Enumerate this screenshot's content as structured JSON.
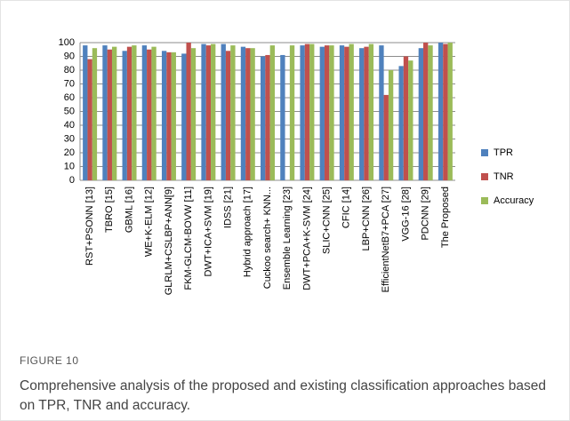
{
  "chart_data": {
    "type": "bar",
    "categories": [
      "RST+PSONN [13]",
      "TBRO [15]",
      "GBML [16]",
      "WE+K-ELM [12]",
      "GLRLM+CSLBP+ANN[9]",
      "FKM-GLCM-BOVW [11]",
      "DWT+ICA+SVM [19]",
      "IDSS [21]",
      "Hybrid approach [17]",
      "Cuckoo search+ KNN...",
      "Ensemble Learning [23]",
      "DWT+PCA+K-SVM [24]",
      "SLIC+CNN [25]",
      "CFIC [14]",
      "LBP+CNN [26]",
      "EfficientNetB7+PCA [27]",
      "VGG-16 [28]",
      "PDCNN [29]",
      "The Proposed"
    ],
    "series": [
      {
        "name": "TPR",
        "color": "#4f81bd",
        "values": [
          98,
          98,
          94,
          98,
          94,
          92,
          99,
          99,
          97,
          90,
          91,
          98,
          97,
          98,
          96,
          98,
          83,
          96,
          100
        ]
      },
      {
        "name": "TNR",
        "color": "#c0504d",
        "values": [
          88,
          95,
          97,
          95,
          93,
          100,
          98,
          94,
          96,
          91,
          null,
          99,
          98,
          97,
          97,
          62,
          90,
          100,
          99
        ]
      },
      {
        "name": "Accuracy",
        "color": "#9bbb59",
        "values": [
          96,
          97,
          98,
          97,
          93,
          96,
          99,
          98,
          96,
          98,
          98,
          99,
          98,
          99,
          99,
          80,
          87,
          98,
          100
        ]
      }
    ],
    "ylim": [
      0,
      100
    ],
    "yticks": [
      0,
      10,
      20,
      30,
      40,
      50,
      60,
      70,
      80,
      90,
      100
    ],
    "grid": true,
    "legend": "right"
  },
  "figure_label": "FIGURE 10",
  "caption": "Comprehensive analysis of the proposed and existing classification approaches based on TPR, TNR and accuracy."
}
